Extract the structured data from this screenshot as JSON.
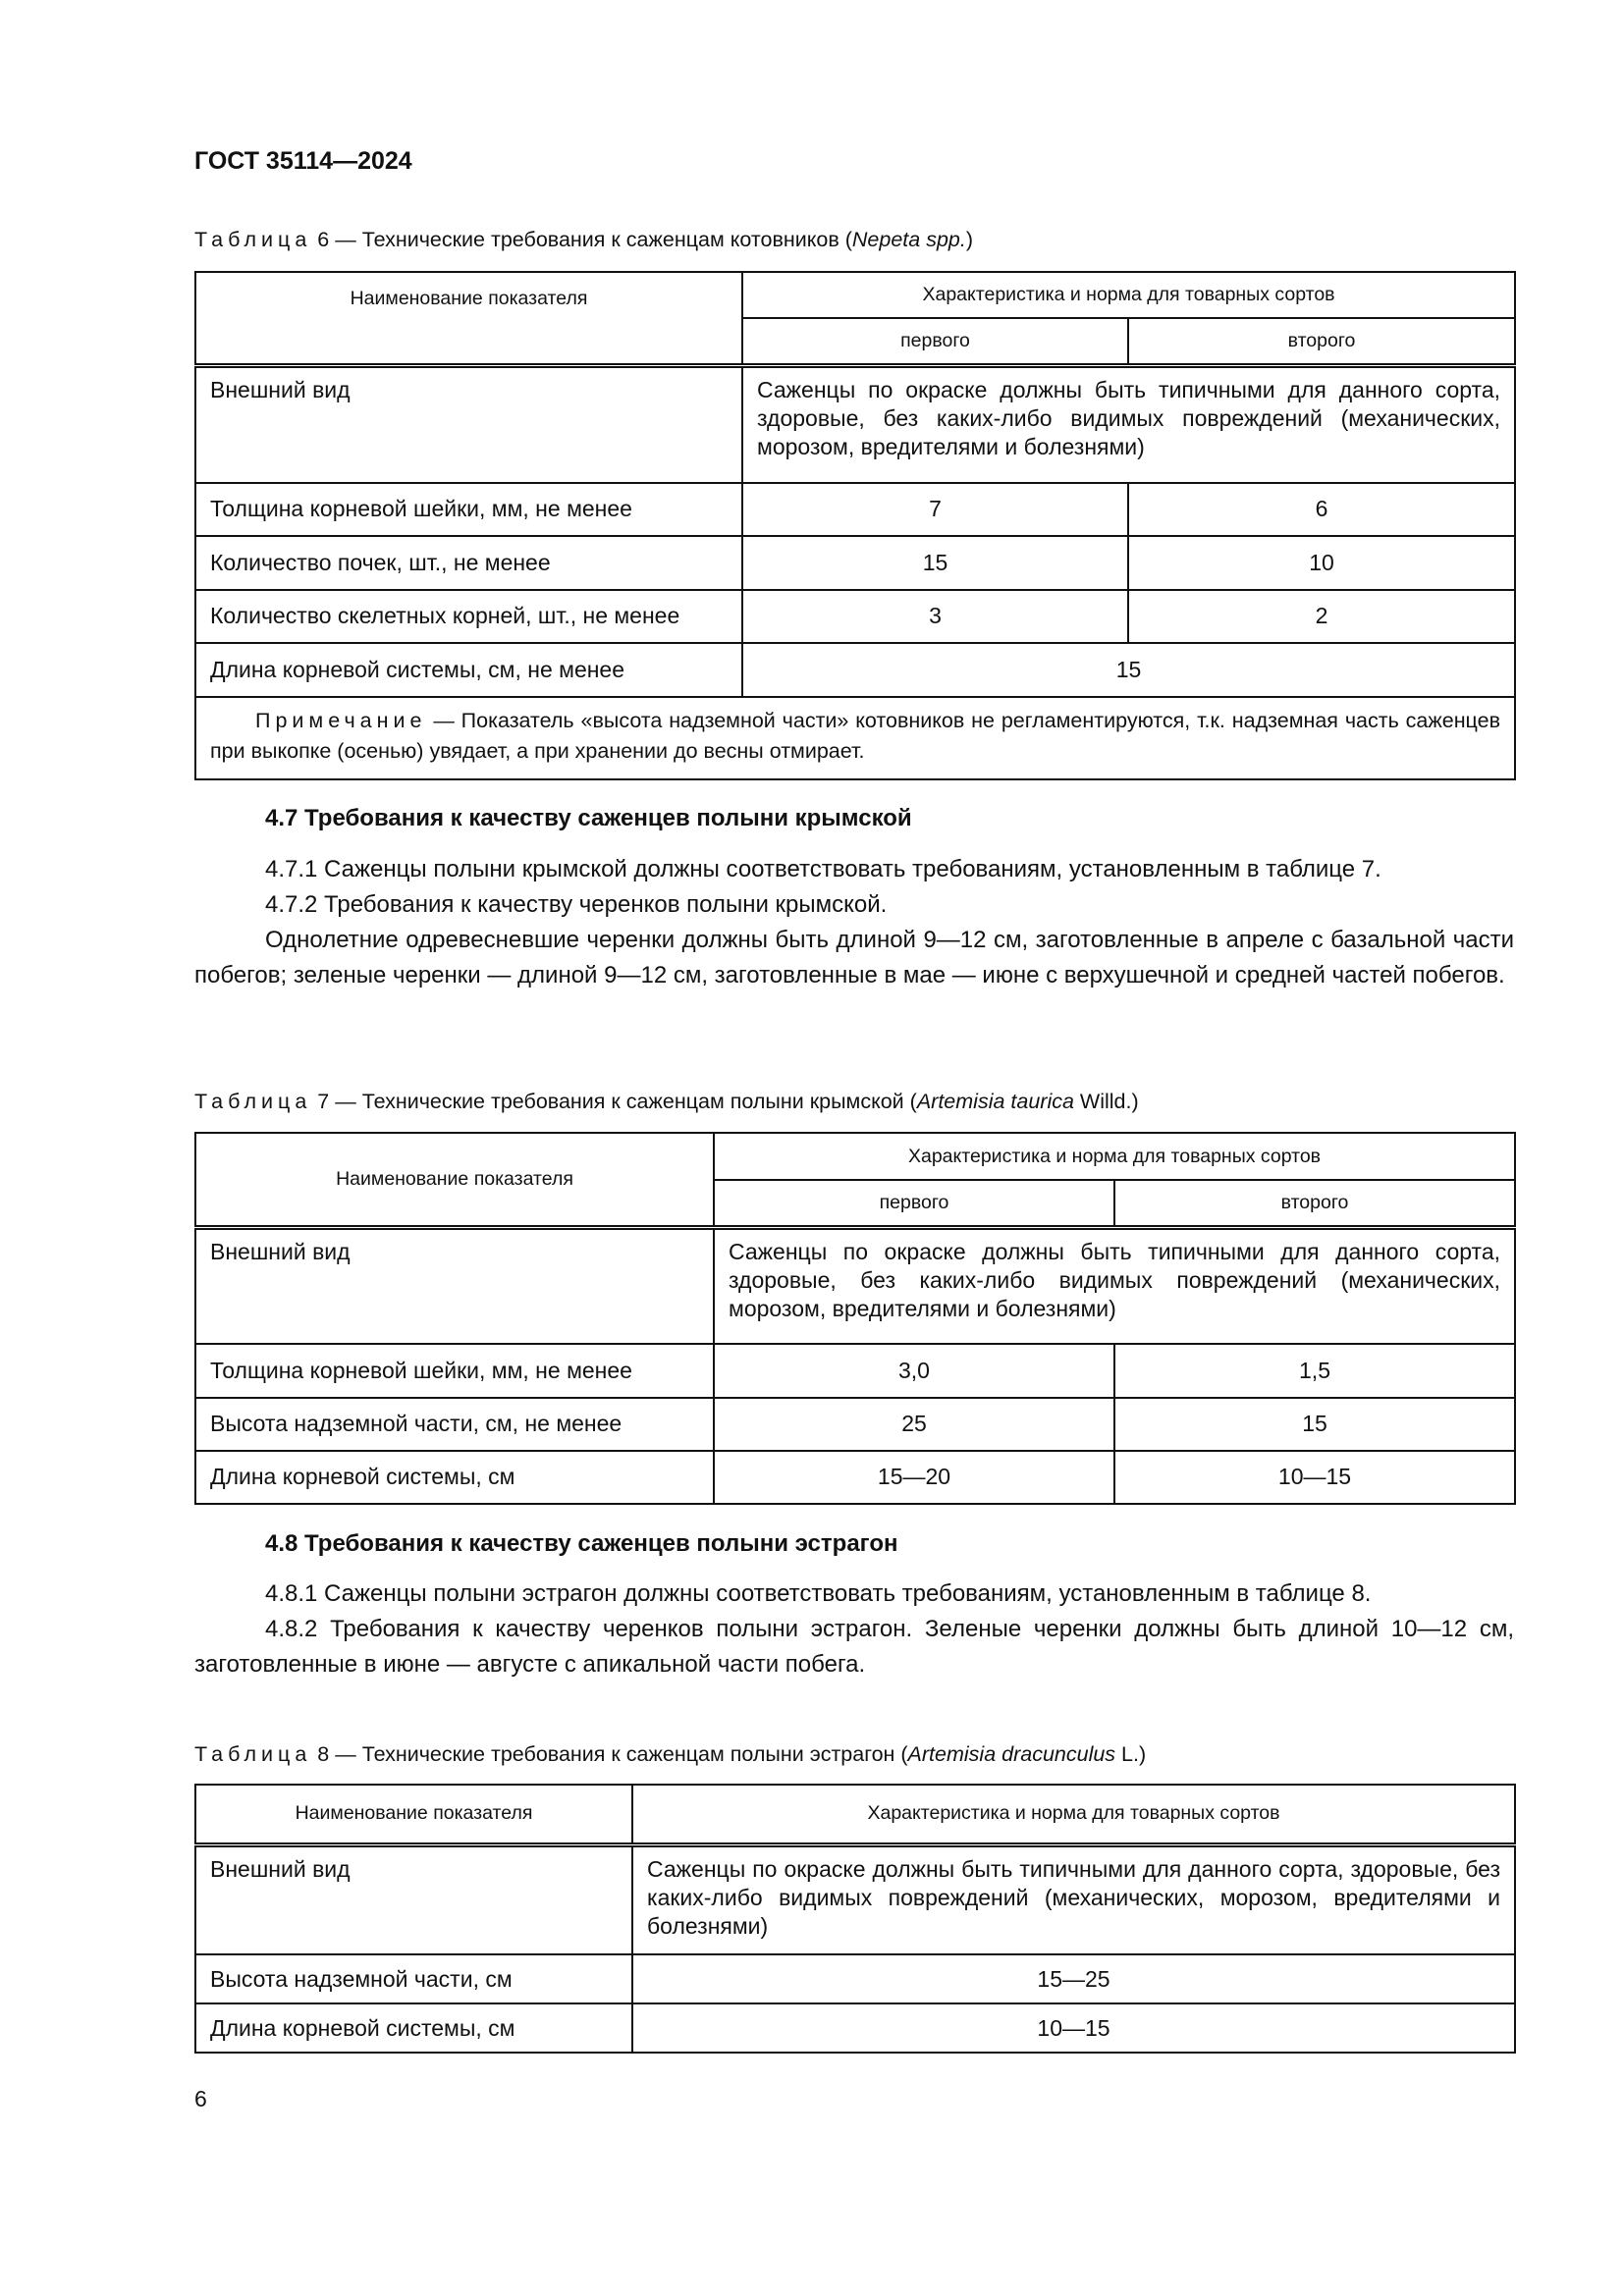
{
  "header": "ГОСТ 35114—2024",
  "page_number": "6",
  "table6": {
    "caption_word": "Таблица",
    "caption": " 6 — Технические требования к саженцам котовников (",
    "caption_latin": "Nepeta spp.",
    "caption_end": ")",
    "col_name": "Наименование показателя",
    "col_group": "Характеристика и норма для товарных сортов",
    "col_first": "первого",
    "col_second": "второго",
    "appearance_label": "Внешний вид",
    "appearance_value": "Саженцы по окраске должны быть типичными для данного сорта, здоровые, без каких-либо видимых повреждений (механических, морозом, вредителями и болезнями)",
    "rows": [
      {
        "name": "Толщина корневой шейки, мм, не менее",
        "first": "7",
        "second": "6"
      },
      {
        "name": "Количество почек, шт., не менее",
        "first": "15",
        "second": "10"
      },
      {
        "name": "Количество скелетных корней, шт., не менее",
        "first": "3",
        "second": "2"
      }
    ],
    "root_label": "Длина корневой системы, см, не менее",
    "root_value": "15",
    "note_word": "Примечание",
    "note_text": " — Показатель «высота надземной части» котовников не регламентируются, т.к. надземная часть саженцев при выкопке (осенью) увядает, а при хранении до весны отмирает."
  },
  "section47": {
    "heading": "4.7 Требования к качеству саженцев полыни крымской",
    "paragraphs": [
      "4.7.1 Саженцы полыни крымской должны соответствовать требованиям, установленным в таблице 7.",
      "4.7.2 Требования к качеству черенков полыни крымской.",
      "Однолетние одревесневшие черенки должны быть длиной 9—12 см, заготовленные в апреле с базальной части побегов; зеленые черенки — длиной 9—12 см, заготовленные в мае — июне с верхушечной и средней частей побегов."
    ]
  },
  "table7": {
    "caption_word": "Таблица",
    "caption": " 7 — Технические требования к саженцам полыни крымской (",
    "caption_latin": "Artemisia taurica",
    "caption_end": " Willd.)",
    "col_name": "Наименование показателя",
    "col_group": "Характеристика и норма для товарных сортов",
    "col_first": "первого",
    "col_second": "второго",
    "appearance_label": "Внешний вид",
    "appearance_value": "Саженцы по окраске должны быть типичными для данного сорта, здоровые, без каких-либо видимых повреждений (механических, морозом, вредителями и болезнями)",
    "rows": [
      {
        "name": "Толщина корневой шейки, мм, не менее",
        "first": "3,0",
        "second": "1,5"
      },
      {
        "name": "Высота надземной части, см, не менее",
        "first": "25",
        "second": "15"
      },
      {
        "name": "Длина корневой системы, см",
        "first": "15—20",
        "second": "10—15"
      }
    ]
  },
  "section48": {
    "heading": "4.8 Требования к качеству саженцев полыни эстрагон",
    "paragraphs": [
      "4.8.1 Саженцы полыни эстрагон должны соответствовать требованиям, установленным в таблице 8.",
      "4.8.2 Требования к качеству черенков полыни эстрагон. Зеленые черенки должны быть длиной 10—12 см, заготовленные в июне — августе с апикальной части побега."
    ]
  },
  "table8": {
    "caption_word": "Таблица",
    "caption": " 8 — Технические требования к саженцам полыни эстрагон (",
    "caption_latin": "Artemisia dracunculus",
    "caption_end": " L.)",
    "col_name": "Наименование показателя",
    "col_group": "Характеристика и норма для товарных сортов",
    "appearance_label": "Внешний вид",
    "appearance_value": "Саженцы по окраске должны быть типичными для данного сорта, здоровые, без каких-либо видимых повреждений (механических, морозом, вредителями и болезнями)",
    "rows": [
      {
        "name": "Высота надземной части, см",
        "value": "15—25"
      },
      {
        "name": "Длина корневой системы, см",
        "value": "10—15"
      }
    ]
  }
}
